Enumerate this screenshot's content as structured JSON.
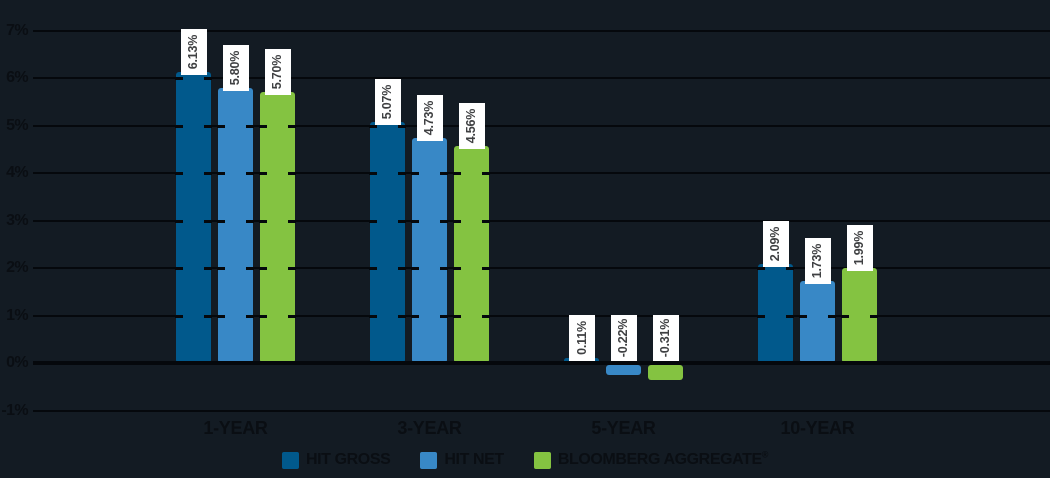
{
  "chart_data": {
    "type": "bar",
    "title": "",
    "xlabel": "",
    "ylabel": "",
    "categories": [
      "1-YEAR",
      "3-YEAR",
      "5-YEAR",
      "10-YEAR"
    ],
    "series": [
      {
        "name": "HIT GROSS",
        "color": "#01598C",
        "values": [
          6.13,
          5.07,
          0.11,
          2.09
        ],
        "value_labels": [
          "6.13%",
          "5.07%",
          "0.11%",
          "2.09%"
        ]
      },
      {
        "name": "HIT NET",
        "color": "#3888C6",
        "values": [
          5.8,
          4.73,
          -0.22,
          1.73
        ],
        "value_labels": [
          "5.80%",
          "4.73%",
          "-0.22%",
          "1.73%"
        ]
      },
      {
        "name": "BLOOMBERG AGGREGATE",
        "name_suffix": "®",
        "color": "#84C341",
        "values": [
          5.7,
          4.56,
          -0.31,
          1.99
        ],
        "value_labels": [
          "5.70%",
          "4.56%",
          "-0.31%",
          "1.99%"
        ]
      }
    ],
    "y_axis": {
      "min": -1,
      "max": 7,
      "tick_step": 1,
      "tick_labels": [
        "7%",
        "6%",
        "5%",
        "4%",
        "3%",
        "2%",
        "1%",
        "0%",
        "-1%"
      ],
      "grid": true
    },
    "legend_position": "bottom"
  },
  "style": {
    "background_color": "#131B23",
    "gridline_color": "#05080C",
    "axis_text_color": "#0A0E13",
    "value_label_bg": "#FFFFFF",
    "value_label_text": "#3F4042"
  }
}
